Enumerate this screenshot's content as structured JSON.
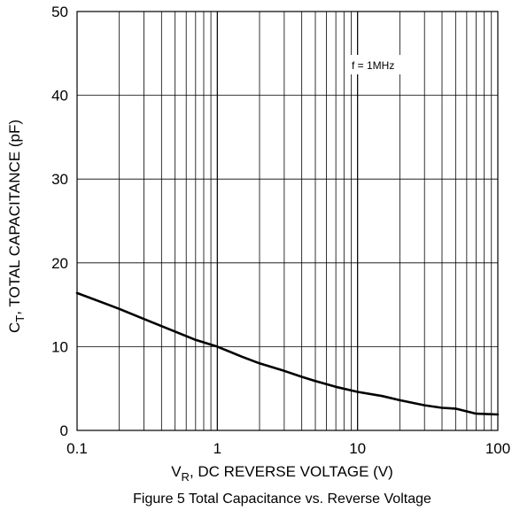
{
  "chart_data": {
    "type": "line",
    "xscale": "log",
    "xlim": [
      0.1,
      100
    ],
    "ylim": [
      0,
      50
    ],
    "grid": true,
    "x_ticks": [
      0.1,
      1,
      10,
      100
    ],
    "x_tick_labels": [
      "0.1",
      "1",
      "10",
      "100"
    ],
    "y_ticks": [
      0,
      10,
      20,
      30,
      40,
      50
    ],
    "y_tick_labels": [
      "0",
      "10",
      "20",
      "30",
      "40",
      "50"
    ],
    "xlabel_main": "V",
    "xlabel_sub": "R",
    "xlabel_rest": ", DC REVERSE VOLTAGE (V)",
    "ylabel_main": "C",
    "ylabel_sub": "T",
    "ylabel_rest": ", TOTAL CAPACITANCE (pF)",
    "caption": "Figure 5 Total Capacitance vs. Reverse Voltage",
    "annotation": "f = 1MHz",
    "series": [
      {
        "color": "#000000",
        "x": [
          0.1,
          0.15,
          0.2,
          0.3,
          0.5,
          0.7,
          1,
          1.5,
          2,
          3,
          4,
          5,
          7,
          10,
          15,
          20,
          30,
          40,
          50,
          70,
          100
        ],
        "y": [
          16.4,
          15.3,
          14.5,
          13.3,
          11.8,
          10.8,
          10.0,
          8.8,
          8.0,
          7.1,
          6.4,
          5.9,
          5.2,
          4.6,
          4.1,
          3.6,
          3.0,
          2.7,
          2.6,
          2.0,
          1.9
        ]
      }
    ]
  }
}
